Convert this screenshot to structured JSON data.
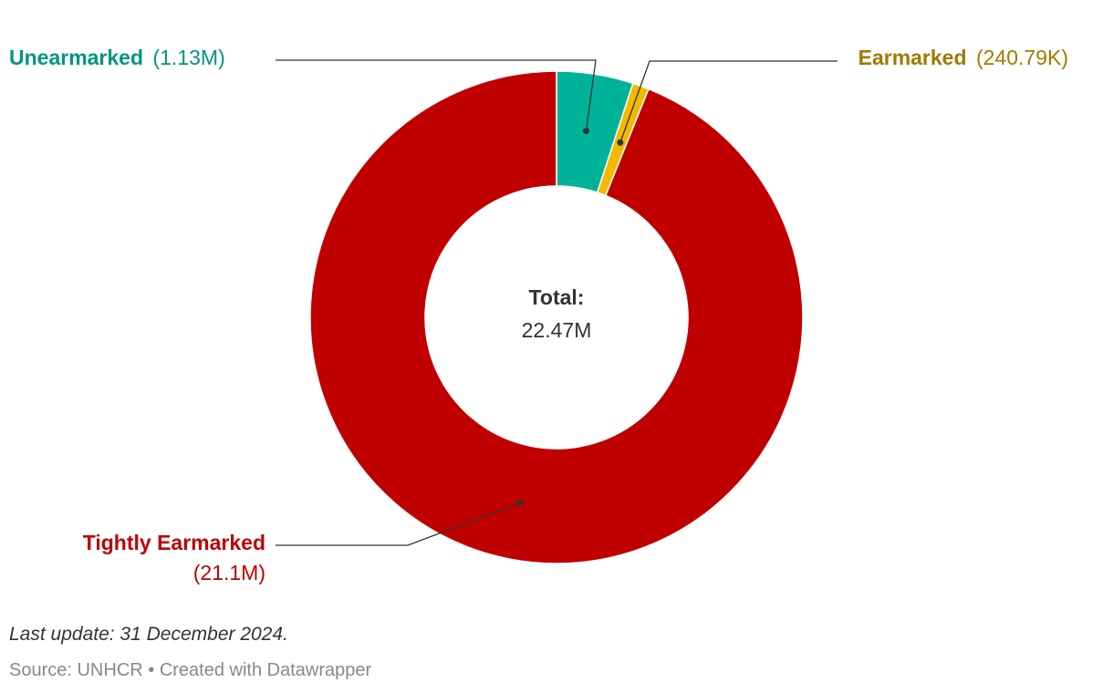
{
  "chart_data": {
    "type": "pie",
    "variant": "donut",
    "unit": "M",
    "center": {
      "title": "Total:",
      "value_label": "22.47M"
    },
    "slices": [
      {
        "name": "Unearmarked",
        "value": 1.13,
        "value_label": "(1.13M)",
        "color": "#00b398",
        "label_color": "#00957f"
      },
      {
        "name": "Earmarked",
        "value": 0.24079,
        "value_label": "(240.79K)",
        "color": "#f5b800",
        "label_color": "#a07a00"
      },
      {
        "name": "Tightly Earmarked",
        "value": 21.1,
        "value_label": "(21.1M)",
        "color": "#c00000",
        "label_color": "#c00000"
      }
    ]
  },
  "footer": {
    "note": "Last update: 31 December 2024.",
    "source": "Source: UNHCR • Created with Datawrapper"
  }
}
